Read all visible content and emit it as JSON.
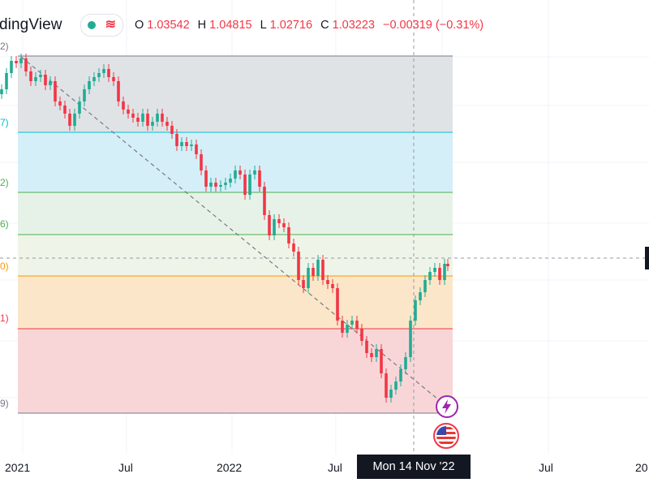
{
  "header": {
    "brand": "dingView",
    "ohlc": [
      {
        "label": "O",
        "value": "1.03542"
      },
      {
        "label": "H",
        "value": "1.04815"
      },
      {
        "label": "L",
        "value": "1.02716"
      },
      {
        "label": "C",
        "value": "1.03223"
      },
      {
        "label": "",
        "value": "−0.00319 (−0.31%)"
      }
    ],
    "status_color": "#22ab94",
    "down_color": "#f23645"
  },
  "crosshair": {
    "date_label": "Mon 14 Nov '22"
  },
  "chart_data": {
    "type": "candlestick",
    "x_tick_labels": [
      "2021",
      "Jul",
      "2022",
      "Jul",
      "Mon 14 Nov '22",
      "Jul",
      "20"
    ],
    "fib_levels": [
      {
        "label": "2)",
        "color": "#787b86"
      },
      {
        "label": "7)",
        "color": "#00bcd4"
      },
      {
        "label": "2)",
        "color": "#4caf50"
      },
      {
        "label": "6)",
        "color": "#4caf50"
      },
      {
        "label": "0)",
        "color": "#ff9800"
      },
      {
        "label": "1)",
        "color": "#f23645"
      },
      {
        "label": "9)",
        "color": "#787b86"
      }
    ],
    "fib_zones": [
      "#e0e3e6",
      "#d4eff7",
      "#e6f2e7",
      "#eef5e8",
      "#fbe6c9",
      "#f8d6d8"
    ],
    "up_color": "#22ab94",
    "down_color": "#f23645"
  },
  "icons": [
    "lightning-icon",
    "us-flag-icon"
  ]
}
